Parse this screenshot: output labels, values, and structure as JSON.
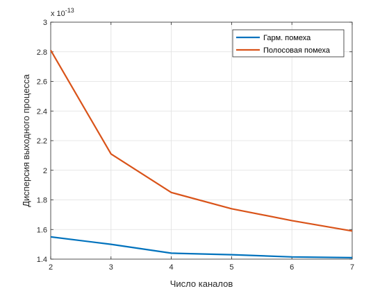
{
  "chart_data": {
    "type": "line",
    "xlabel": "Число каналов",
    "ylabel": "Дисперсия выходного процесса",
    "y_exponent": {
      "base": "x 10",
      "power": "-13"
    },
    "xlim": [
      2,
      7
    ],
    "ylim": [
      1.4,
      3.0
    ],
    "x_ticks": [
      2,
      3,
      4,
      5,
      6,
      7
    ],
    "y_ticks": [
      1.4,
      1.6,
      1.8,
      2.0,
      2.2,
      2.4,
      2.6,
      2.8,
      3.0
    ],
    "x_tick_labels": [
      "2",
      "3",
      "4",
      "5",
      "6",
      "7"
    ],
    "y_tick_labels": [
      "1.4",
      "1.6",
      "1.8",
      "2",
      "2.2",
      "2.4",
      "2.6",
      "2.8",
      "3"
    ],
    "grid": true,
    "legend_position": "top-right",
    "x": [
      2,
      3,
      4,
      5,
      6,
      7
    ],
    "series": [
      {
        "name": "Гарм. помеха",
        "color": "#0072BD",
        "values": [
          1.55,
          1.5,
          1.44,
          1.43,
          1.415,
          1.41
        ]
      },
      {
        "name": "Полосовая помеха",
        "color": "#D95319",
        "values": [
          2.81,
          2.11,
          1.85,
          1.74,
          1.66,
          1.59
        ]
      }
    ]
  }
}
